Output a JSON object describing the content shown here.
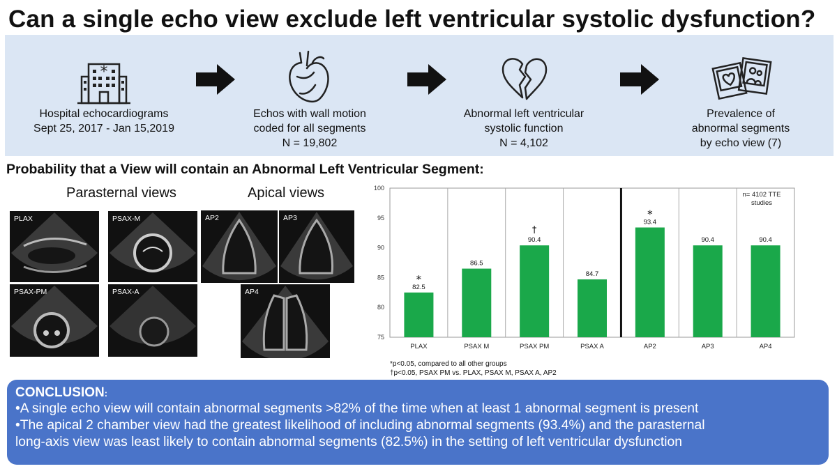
{
  "title": "Can a single echo view exclude left ventricular systolic dysfunction?",
  "flow": {
    "steps": [
      {
        "icon": "hospital-icon",
        "lines": [
          "Hospital echocardiograms",
          "Sept 25, 2017 - Jan 15,2019"
        ]
      },
      {
        "icon": "heart-icon",
        "lines": [
          "Echos with wall motion",
          "coded for all segments",
          "N = 19,802"
        ]
      },
      {
        "icon": "broken-heart-icon",
        "lines": [
          "Abnormal left ventricular",
          "systolic function",
          "N = 4,102"
        ]
      },
      {
        "icon": "photos-icon",
        "lines": [
          "Prevalence of",
          "abnormal segments",
          "by echo view (7)"
        ]
      }
    ]
  },
  "subtitle": "Probability that a View will contain an Abnormal Left Ventricular Segment:",
  "images": {
    "parasternal_title": "Parasternal views",
    "apical_title": "Apical views",
    "labels": [
      "PLAX",
      "PSAX-M",
      "PSAX-PM",
      "PSAX-A",
      "AP2",
      "AP3",
      "AP4"
    ]
  },
  "chart_data": {
    "type": "bar",
    "categories": [
      "PLAX",
      "PSAX M",
      "PSAX PM",
      "PSAX A",
      "AP2",
      "AP3",
      "AP4"
    ],
    "values": [
      82.5,
      86.5,
      90.4,
      84.7,
      93.4,
      90.4,
      90.4
    ],
    "value_labels": [
      "82.5",
      "86.5",
      "90.4",
      "84.7",
      "93.4",
      "90.4",
      "90.4"
    ],
    "significance_marks": [
      "*",
      "",
      "†",
      "",
      "*",
      "",
      ""
    ],
    "ylim": [
      75,
      100
    ],
    "yticks": [
      75,
      80,
      85,
      90,
      95,
      100
    ],
    "grid": "vertical separators",
    "bar_color": "#1aa84a",
    "divider_after_category": "PSAX A",
    "annotation": [
      "n= 4102 TTE",
      "studies"
    ],
    "title": "",
    "xlabel": "",
    "ylabel": ""
  },
  "footnotes": [
    "*p<0.05, compared to all other groups",
    "†p<0.05, PSAX PM vs. PLAX, PSAX M, PSAX A, AP2"
  ],
  "conclusion": {
    "heading": "CONCLUSION",
    "colon": ":",
    "lines": [
      "•A single echo view will contain abnormal segments >82% of the time when at least 1 abnormal segment is present",
      "•The apical 2 chamber view had the greatest likelihood of including abnormal segments (93.4%) and the parasternal",
      "long-axis view was least likely to contain abnormal segments (82.5%) in the setting of left ventricular dysfunction"
    ]
  },
  "colors": {
    "flow_bg": "#dbe6f4",
    "conclusion_bg": "#4a74c9",
    "bar": "#1aa84a"
  }
}
